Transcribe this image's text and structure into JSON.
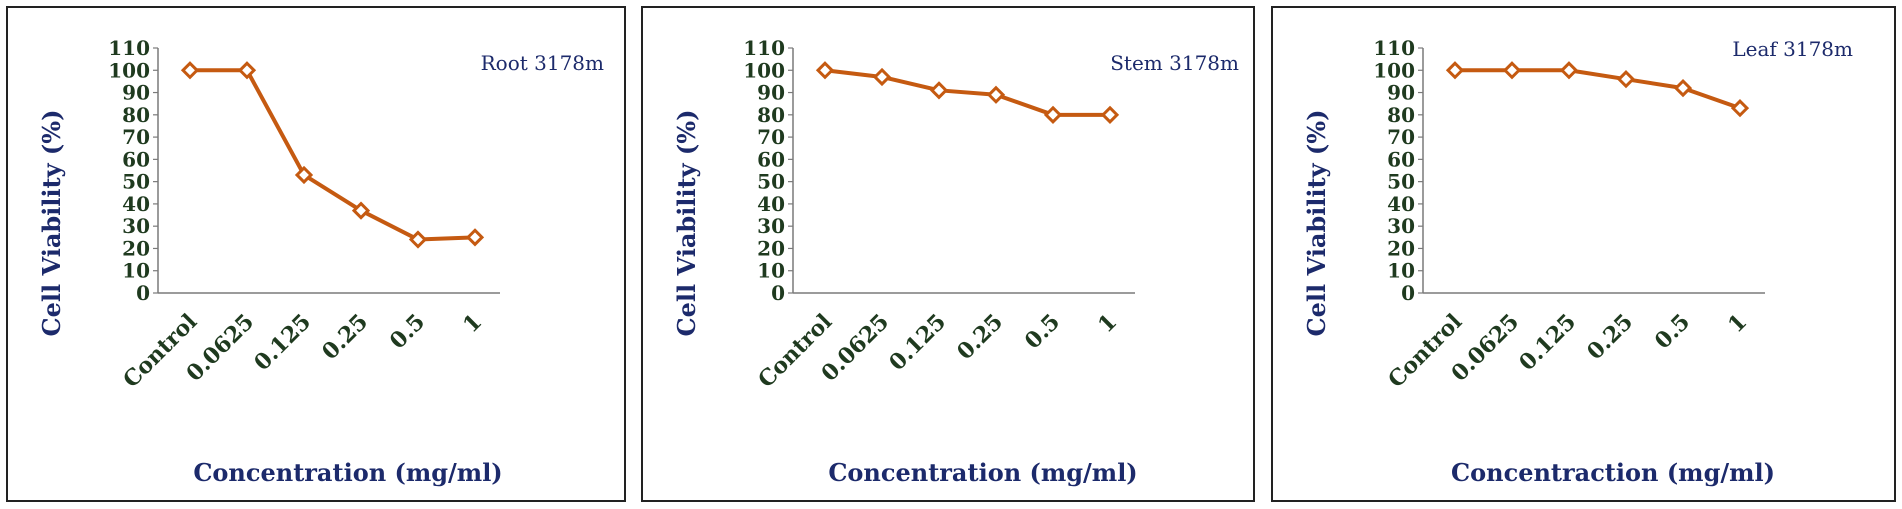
{
  "chart_data": [
    {
      "type": "line",
      "title": "Root 3178m",
      "xlabel": "Concentration (mg/ml)",
      "ylabel": "Cell Viability (%)",
      "categories": [
        "Control",
        "0.0625",
        "0.125",
        "0.25",
        "0.5",
        "1"
      ],
      "yticks": [
        "0",
        "10",
        "20",
        "30",
        "40",
        "50",
        "60",
        "70",
        "80",
        "90",
        "100",
        "110"
      ],
      "ylim": [
        0,
        110
      ],
      "grid": false,
      "series": [
        {
          "values": [
            100,
            100,
            53,
            37,
            24,
            25
          ],
          "color": "#c55a11"
        }
      ]
    },
    {
      "type": "line",
      "title": "Stem 3178m",
      "xlabel": "Concentration (mg/ml)",
      "ylabel": "Cell Viability (%)",
      "categories": [
        "Control",
        "0.0625",
        "0.125",
        "0.25",
        "0.5",
        "1"
      ],
      "yticks": [
        "0",
        "10",
        "20",
        "30",
        "40",
        "50",
        "60",
        "70",
        "80",
        "90",
        "100",
        "110"
      ],
      "ylim": [
        0,
        110
      ],
      "grid": false,
      "series": [
        {
          "values": [
            100,
            97,
            91,
            89,
            80,
            80
          ],
          "color": "#c55a11"
        }
      ]
    },
    {
      "type": "line",
      "title": "Leaf 3178m",
      "xlabel": "Concentraction (mg/ml)",
      "ylabel": "Cell Viability (%)",
      "categories": [
        "Control",
        "0.0625",
        "0.125",
        "0.25",
        "0.5",
        "1"
      ],
      "yticks": [
        "0",
        "10",
        "20",
        "30",
        "40",
        "50",
        "60",
        "70",
        "80",
        "90",
        "100",
        "110"
      ],
      "ylim": [
        0,
        110
      ],
      "grid": false,
      "series": [
        {
          "values": [
            100,
            100,
            100,
            96,
            92,
            83
          ],
          "color": "#c55a11"
        }
      ]
    }
  ]
}
